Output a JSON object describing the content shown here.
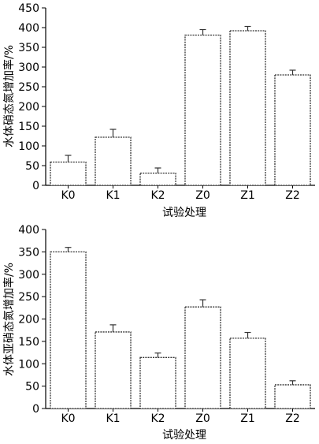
{
  "chart_data": [
    {
      "type": "bar",
      "categories": [
        "K0",
        "K1",
        "K2",
        "Z0",
        "Z1",
        "Z2"
      ],
      "values": [
        59,
        122,
        31,
        381,
        392,
        280
      ],
      "errors": [
        17,
        20,
        13,
        14,
        11,
        12
      ],
      "ylabel": "水体硝态氮增加率/%",
      "xlabel": "试验处理",
      "ylim": [
        0,
        450
      ],
      "yticks": [
        0,
        50,
        100,
        150,
        200,
        250,
        300,
        350,
        400,
        450
      ],
      "grid": false
    },
    {
      "type": "bar",
      "categories": [
        "K0",
        "K1",
        "K2",
        "Z0",
        "Z1",
        "Z2"
      ],
      "values": [
        350,
        171,
        114,
        227,
        157,
        53
      ],
      "errors": [
        10,
        16,
        10,
        16,
        13,
        9
      ],
      "ylabel": "水体亚硝态氮增加率/%",
      "xlabel": "试验处理",
      "ylim": [
        0,
        400
      ],
      "yticks": [
        0,
        50,
        100,
        150,
        200,
        250,
        300,
        350,
        400
      ],
      "grid": false
    }
  ]
}
